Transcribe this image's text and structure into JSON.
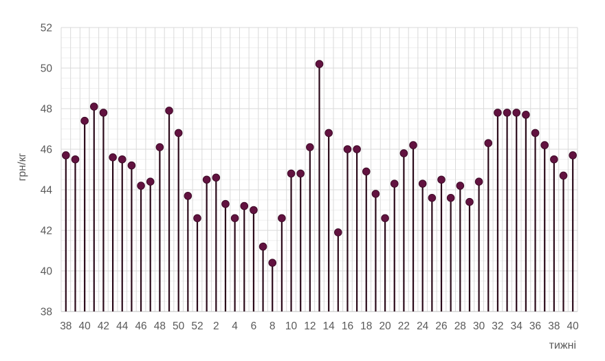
{
  "chart_data": {
    "type": "scatter",
    "subtype": "lollipop-stem",
    "title": "",
    "xlabel": "тижні",
    "ylabel": "грн/кг",
    "ylim": [
      38,
      52
    ],
    "y_major_step": 2,
    "y_minor_step": 0.5,
    "x_tick_every": 2,
    "grid": "on",
    "legend": "none",
    "categories": [
      "38",
      "39",
      "40",
      "41",
      "42",
      "43",
      "44",
      "45",
      "46",
      "47",
      "48",
      "49",
      "50",
      "51",
      "52",
      "1",
      "2",
      "3",
      "4",
      "5",
      "6",
      "7",
      "8",
      "9",
      "10",
      "11",
      "12",
      "13",
      "14",
      "15",
      "16",
      "17",
      "18",
      "19",
      "20",
      "21",
      "22",
      "23",
      "24",
      "25",
      "26",
      "27",
      "28",
      "29",
      "30",
      "31",
      "32",
      "33",
      "34",
      "35",
      "36",
      "37",
      "38",
      "39",
      "40"
    ],
    "values": [
      45.7,
      45.5,
      47.4,
      48.1,
      47.8,
      45.6,
      45.5,
      45.2,
      44.2,
      44.4,
      46.1,
      47.9,
      46.8,
      43.7,
      42.6,
      44.5,
      44.6,
      43.3,
      42.6,
      43.2,
      43.0,
      41.2,
      40.4,
      42.6,
      44.8,
      44.8,
      46.1,
      50.2,
      46.8,
      41.9,
      46.0,
      46.0,
      44.9,
      43.8,
      42.6,
      44.3,
      45.8,
      46.2,
      44.3,
      43.6,
      44.5,
      43.6,
      44.2,
      43.4,
      44.4,
      46.3,
      47.8,
      47.8,
      47.8,
      47.7,
      46.8,
      46.2,
      45.5,
      44.7,
      45.7
    ],
    "colors": {
      "marker": "#621240",
      "marker_border": "#3d0b27",
      "stem": "#2a0919",
      "grid_major": "#d9d9d9",
      "grid_minor": "#f0f0f0",
      "grid_vertical": "#d9d9d9",
      "axis_line": "#bfbfbf",
      "text": "#595959"
    }
  }
}
